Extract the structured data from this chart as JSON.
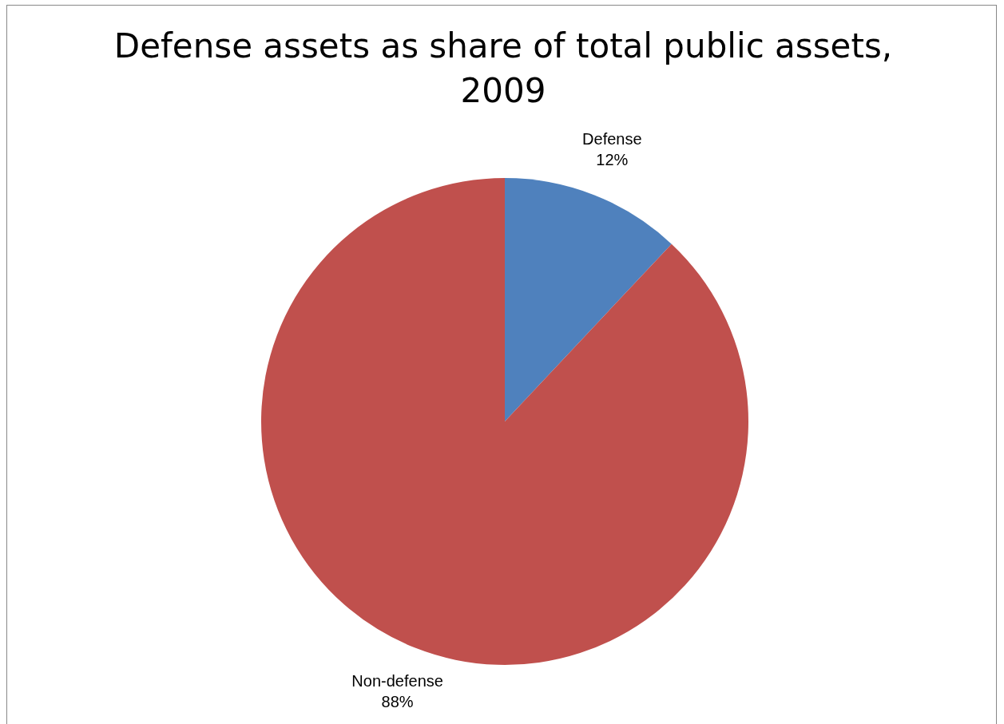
{
  "chart_data": {
    "type": "pie",
    "title": "Defense assets as share of total public assets, 2009",
    "categories": [
      "Defense",
      "Non-defense"
    ],
    "values": [
      12,
      88
    ],
    "value_labels": [
      "12%",
      "88%"
    ],
    "colors": [
      "#4f81bd",
      "#c0504d"
    ]
  }
}
